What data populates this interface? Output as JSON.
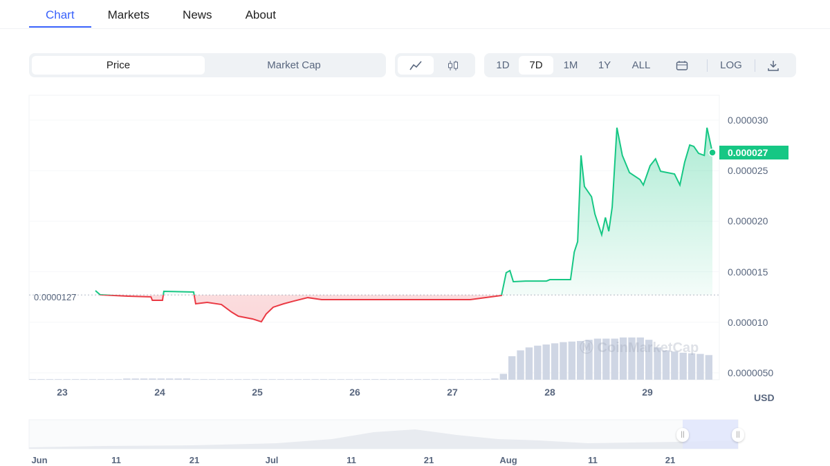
{
  "tabs": [
    {
      "label": "Chart",
      "active": true
    },
    {
      "label": "Markets"
    },
    {
      "label": "News"
    },
    {
      "label": "About"
    }
  ],
  "toolbar": {
    "metric": [
      "Price",
      "Market Cap"
    ],
    "metric_selected": "Price",
    "chart_types": [
      "line-chart-icon",
      "candlestick-icon"
    ],
    "chart_type_selected": "line",
    "ranges": [
      "1D",
      "7D",
      "1M",
      "1Y",
      "ALL"
    ],
    "range_selected": "7D",
    "calendar_icon": "calendar-icon",
    "log_label": "LOG",
    "download_icon": "download-icon"
  },
  "colors": {
    "up": "#16c784",
    "down": "#ea3943",
    "accent": "#3861fb",
    "volume": "#cfd6e4"
  },
  "watermark": "CoinMarketCap",
  "chart_data": {
    "type": "line",
    "currency": "USD",
    "y_ticks": [
      "0.000030",
      "0.000025",
      "0.000020",
      "0.000015",
      "0.000010",
      "0.0000050"
    ],
    "ylim": [
      5e-06,
      3e-05
    ],
    "x_ticks": [
      "23",
      "24",
      "25",
      "26",
      "27",
      "28",
      "29"
    ],
    "xlim": [
      "08-23 00:00",
      "08-29 16:00"
    ],
    "baseline": {
      "value": 1.27e-05,
      "label": "0.0000127"
    },
    "current": {
      "value": 2.7e-05,
      "label": "0.000027"
    },
    "points": [
      [
        "08-23 08:10",
        13.13
      ],
      [
        "08-23 09:20",
        12.72
      ],
      [
        "08-23 16:10",
        12.58
      ],
      [
        "08-23 21:50",
        12.51
      ],
      [
        "08-23 22:10",
        12.17
      ],
      [
        "08-24 00:40",
        12.17
      ],
      [
        "08-24 01:00",
        13.06
      ],
      [
        "08-24 08:20",
        12.99
      ],
      [
        "08-24 08:50",
        11.83
      ],
      [
        "08-24 11:40",
        11.97
      ],
      [
        "08-24 15:10",
        11.76
      ],
      [
        "08-24 17:40",
        11.01
      ],
      [
        "08-24 19:20",
        10.6
      ],
      [
        "08-24 22:50",
        10.33
      ],
      [
        "08-25 01:00",
        10.05
      ],
      [
        "08-25 02:10",
        10.81
      ],
      [
        "08-25 03:55",
        11.49
      ],
      [
        "08-25 06:30",
        11.83
      ],
      [
        "08-25 09:00",
        12.1
      ],
      [
        "08-25 12:25",
        12.44
      ],
      [
        "08-25 15:50",
        12.24
      ],
      [
        "08-25 21:50",
        12.24
      ],
      [
        "08-26 14:50",
        12.24
      ],
      [
        "08-27 04:25",
        12.24
      ],
      [
        "08-27 09:30",
        12.51
      ],
      [
        "08-27 12:05",
        12.65
      ],
      [
        "08-27 13:15",
        14.9
      ],
      [
        "08-27 14:10",
        15.11
      ],
      [
        "08-27 15:00",
        14.02
      ],
      [
        "08-27 18:00",
        14.08
      ],
      [
        "08-27 23:10",
        14.08
      ],
      [
        "08-28 00:00",
        14.22
      ],
      [
        "08-28 05:05",
        14.22
      ],
      [
        "08-28 06:00",
        16.95
      ],
      [
        "08-28 06:50",
        17.98
      ],
      [
        "08-28 07:40",
        26.51
      ],
      [
        "08-28 08:30",
        23.44
      ],
      [
        "08-28 10:15",
        22.42
      ],
      [
        "08-28 11:05",
        20.71
      ],
      [
        "08-28 12:45",
        18.66
      ],
      [
        "08-28 13:40",
        20.37
      ],
      [
        "08-28 14:30",
        19.0
      ],
      [
        "08-28 15:20",
        21.39
      ],
      [
        "08-28 16:30",
        29.25
      ],
      [
        "08-28 17:50",
        26.51
      ],
      [
        "08-28 19:35",
        24.81
      ],
      [
        "08-28 22:10",
        24.12
      ],
      [
        "08-28 23:00",
        23.58
      ],
      [
        "08-29 00:40",
        25.49
      ],
      [
        "08-29 02:00",
        26.17
      ],
      [
        "08-29 03:15",
        24.94
      ],
      [
        "08-29 06:40",
        24.67
      ],
      [
        "08-29 08:00",
        23.58
      ],
      [
        "08-29 09:10",
        25.83
      ],
      [
        "08-29 10:25",
        27.54
      ],
      [
        "08-29 11:25",
        27.4
      ],
      [
        "08-29 12:35",
        26.72
      ],
      [
        "08-29 14:00",
        26.51
      ],
      [
        "08-29 14:40",
        29.25
      ],
      [
        "08-29 16:00",
        26.79
      ]
    ],
    "points_unit": "1e-6 USD",
    "volume_relative": [
      1,
      1,
      1,
      1,
      1,
      1,
      1,
      1,
      1,
      1,
      1,
      2,
      2,
      2,
      2,
      2,
      2,
      2,
      2,
      1,
      1,
      1,
      1,
      1,
      1,
      1,
      1,
      1,
      1,
      1,
      1,
      1,
      1,
      1,
      1,
      1,
      1,
      1,
      1,
      1,
      1,
      1,
      1,
      1,
      1,
      1,
      1,
      1,
      1,
      1,
      1,
      1,
      1,
      1,
      2,
      10,
      40,
      50,
      55,
      58,
      60,
      62,
      64,
      65,
      66,
      68,
      70,
      70,
      70,
      72,
      72,
      72,
      68,
      55,
      50,
      48,
      46,
      45,
      44,
      42
    ]
  },
  "navigator": {
    "labels": [
      "Jun",
      "11",
      "21",
      "Jul",
      "11",
      "21",
      "Aug",
      "11",
      "21"
    ]
  }
}
